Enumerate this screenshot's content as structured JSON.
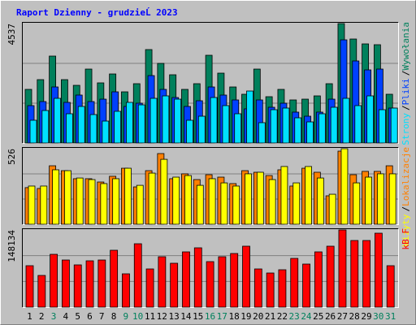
{
  "chart_data": [
    {
      "type": "bar",
      "title": "Raport Dzienny -  grudzieĹ  2023",
      "ylim": [
        0,
        4537
      ],
      "yticks": [
        4537
      ],
      "grid": true,
      "legend_separator": "/",
      "series": [
        {
          "name": "Wywołania",
          "color": "#00805c",
          "values": [
            2037,
            2407,
            3302,
            2407,
            2191,
            2808,
            2284,
            2623,
            1944,
            2253,
            3549,
            3024,
            2592,
            2037,
            2253,
            3333,
            2654,
            2129,
            1852,
            2808,
            1759,
            2037,
            1636,
            1666,
            1790,
            2253,
            4537,
            3950,
            3765,
            3734,
            1852
          ]
        },
        {
          "name": "Pliki",
          "color": "#0040ff",
          "values": [
            1420,
            1574,
            2129,
            1543,
            1821,
            1574,
            1666,
            1944,
            1389,
            1512,
            2561,
            2037,
            1728,
            1389,
            1605,
            2129,
            1821,
            1636,
            1296,
            1636,
            1358,
            1512,
            1173,
            1018,
            1173,
            1666,
            3919,
            3117,
            2777,
            2808,
            1327
          ]
        },
        {
          "name": "Strony",
          "color": "#00e0ff",
          "values": [
            864,
            1234,
            1697,
            1111,
            1389,
            1080,
            833,
            1204,
            1543,
            1450,
            1697,
            1790,
            1666,
            864,
            1018,
            1728,
            1420,
            1111,
            1975,
            772,
            1265,
            1327,
            957,
            802,
            1111,
            1358,
            1697,
            1420,
            1790,
            1265,
            1327
          ]
        }
      ]
    },
    {
      "type": "bar",
      "ylim": [
        0,
        526
      ],
      "yticks": [
        526
      ],
      "grid": true,
      "legend_separator": "/",
      "series": [
        {
          "name": "Lokalizacje",
          "color": "#ff8000",
          "values": [
            255,
            249,
            407,
            373,
            317,
            317,
            294,
            334,
            390,
            260,
            373,
            492,
            317,
            351,
            311,
            345,
            328,
            283,
            373,
            362,
            339,
            379,
            266,
            390,
            362,
            198,
            509,
            345,
            368,
            368,
            407
          ]
        },
        {
          "name": "Wizyty",
          "color": "#ffff00",
          "values": [
            266,
            266,
            379,
            373,
            322,
            311,
            283,
            317,
            390,
            271,
            356,
            452,
            328,
            339,
            271,
            317,
            288,
            266,
            351,
            362,
            311,
            402,
            288,
            402,
            322,
            209,
            526,
            288,
            328,
            351,
            351
          ]
        }
      ]
    },
    {
      "type": "bar",
      "ylim": [
        0,
        148134
      ],
      "yticks": [
        148134
      ],
      "grid": true,
      "categories": [
        "1",
        "2",
        "3",
        "4",
        "5",
        "6",
        "7",
        "8",
        "9",
        "10",
        "11",
        "12",
        "13",
        "14",
        "15",
        "16",
        "17",
        "18",
        "19",
        "20",
        "21",
        "22",
        "23",
        "24",
        "25",
        "26",
        "27",
        "28",
        "29",
        "30",
        "31"
      ],
      "category_colors": [
        "#000000",
        "#000000",
        "#00805c",
        "#000000",
        "#000000",
        "#000000",
        "#000000",
        "#000000",
        "#00805c",
        "#00805c",
        "#000000",
        "#000000",
        "#000000",
        "#000000",
        "#000000",
        "#00805c",
        "#00805c",
        "#000000",
        "#000000",
        "#000000",
        "#000000",
        "#000000",
        "#00805c",
        "#00805c",
        "#000000",
        "#000000",
        "#000000",
        "#000000",
        "#000000",
        "#00805c",
        "#00805c"
      ],
      "series": [
        {
          "name": "kB F",
          "color": "#ff0000",
          "values": [
            79524,
            60813,
            101355,
            90439,
            81084,
            88880,
            90439,
            109151,
            63931,
            121625,
            73287,
            96677,
            84202,
            106032,
            113829,
            87321,
            96677,
            102914,
            116948,
            73287,
            65491,
            71728,
            93558,
            82643,
            106032,
            116948,
            148134,
            127863,
            127863,
            141896,
            79524
          ]
        }
      ]
    }
  ]
}
